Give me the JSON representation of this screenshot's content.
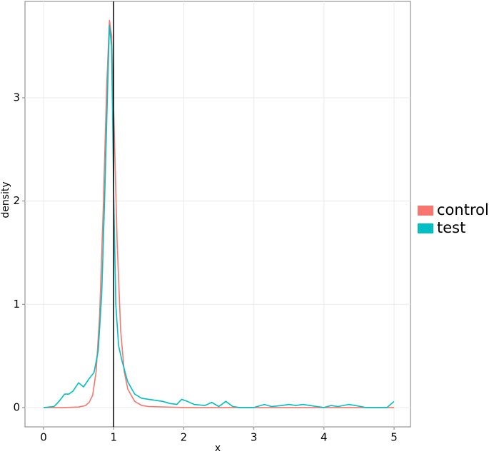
{
  "chart_data": {
    "type": "line",
    "x_label": "x",
    "y_label": "density",
    "xlim": [
      -0.265,
      5.234
    ],
    "ylim": [
      -0.187,
      3.933
    ],
    "xticks": [
      0,
      1,
      2,
      3,
      4,
      5
    ],
    "yticks": [
      0,
      1,
      2,
      3
    ],
    "grid": true,
    "vline": 1,
    "legend_position": "right",
    "series": [
      {
        "name": "control",
        "color": "#F8766D",
        "x": [
          0,
          0.3,
          0.5,
          0.6,
          0.65,
          0.7,
          0.75,
          0.8,
          0.85,
          0.9,
          0.94,
          0.97,
          1.0,
          1.05,
          1.1,
          1.15,
          1.2,
          1.3,
          1.4,
          1.5,
          2,
          3,
          4,
          5
        ],
        "values": [
          0,
          0,
          0.005,
          0.02,
          0.05,
          0.12,
          0.35,
          0.9,
          1.9,
          3.1,
          3.75,
          3.6,
          2.9,
          1.6,
          0.75,
          0.35,
          0.18,
          0.06,
          0.02,
          0.01,
          0,
          0,
          0,
          0
        ]
      },
      {
        "name": "test",
        "color": "#00BFC4",
        "x": [
          0,
          0.15,
          0.22,
          0.3,
          0.36,
          0.42,
          0.5,
          0.57,
          0.65,
          0.72,
          0.78,
          0.83,
          0.87,
          0.91,
          0.94,
          0.97,
          1.0,
          1.03,
          1.07,
          1.12,
          1.2,
          1.3,
          1.4,
          1.5,
          1.6,
          1.7,
          1.8,
          1.9,
          1.97,
          2.05,
          2.15,
          2.3,
          2.4,
          2.5,
          2.6,
          2.7,
          2.8,
          3.0,
          3.15,
          3.25,
          3.4,
          3.5,
          3.6,
          3.7,
          3.8,
          3.9,
          4.0,
          4.1,
          4.2,
          4.35,
          4.45,
          4.6,
          4.9,
          5.0
        ],
        "values": [
          0,
          0.01,
          0.06,
          0.13,
          0.13,
          0.16,
          0.24,
          0.2,
          0.28,
          0.34,
          0.55,
          1.1,
          2.0,
          3.0,
          3.7,
          3.5,
          2.1,
          1.0,
          0.6,
          0.45,
          0.25,
          0.13,
          0.09,
          0.08,
          0.07,
          0.06,
          0.04,
          0.03,
          0.08,
          0.06,
          0.03,
          0.02,
          0.05,
          0.01,
          0.06,
          0.01,
          0,
          0,
          0.03,
          0.01,
          0.02,
          0.03,
          0.02,
          0.03,
          0.02,
          0.01,
          0,
          0.02,
          0.01,
          0.03,
          0.02,
          0,
          0,
          0.06
        ]
      }
    ]
  }
}
